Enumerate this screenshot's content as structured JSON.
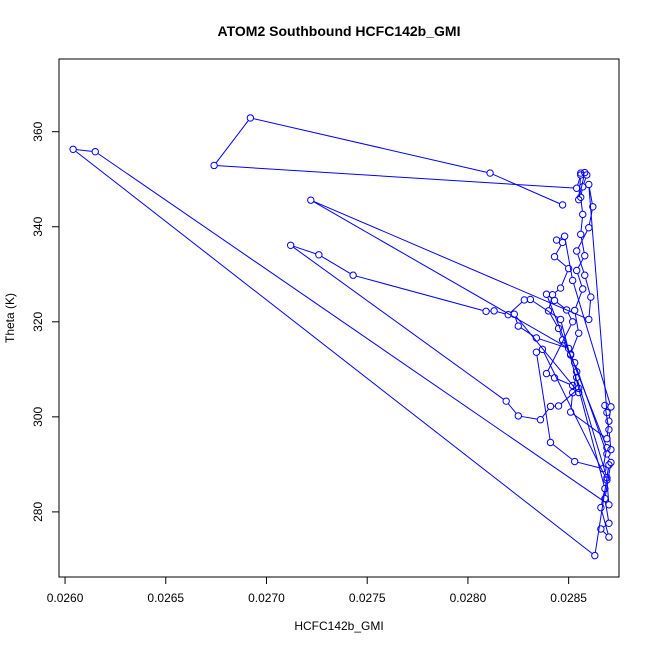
{
  "chart_data": {
    "type": "line",
    "title": "ATOM2 Southbound HCFC142b_GMI",
    "xlabel": "HCFC142b_GMI",
    "ylabel": "Theta (K)",
    "xlim": [
      0.02597,
      0.02875
    ],
    "ylim": [
      266.3,
      375.3
    ],
    "x_ticks": [
      0.026,
      0.0265,
      0.027,
      0.0275,
      0.028,
      0.0285
    ],
    "x_tick_labels": [
      "0.0260",
      "0.0265",
      "0.0270",
      "0.0275",
      "0.0280",
      "0.0285"
    ],
    "y_ticks": [
      280,
      300,
      320,
      340,
      360
    ],
    "y_tick_labels": [
      "280",
      "300",
      "320",
      "340",
      "360"
    ],
    "grid": false,
    "legend": "none",
    "series_color": "#0000ff",
    "series": [
      {
        "marker": "open-circle",
        "points": [
          [
            0.02847,
            344.6
          ],
          [
            0.02811,
            351.3
          ],
          [
            0.02692,
            362.9
          ],
          [
            0.02674,
            352.9
          ],
          [
            0.02854,
            348.1
          ],
          [
            0.02856,
            350.9
          ],
          [
            0.02855,
            345.7
          ],
          [
            0.02858,
            351.4
          ],
          [
            0.02856,
            351.3
          ],
          [
            0.02859,
            350.9
          ],
          [
            0.02857,
            348.4
          ],
          [
            0.02856,
            346.2
          ],
          [
            0.02857,
            342.6
          ],
          [
            0.02856,
            338.4
          ],
          [
            0.02858,
            333.9
          ],
          [
            0.02854,
            330.8
          ],
          [
            0.02857,
            326.9
          ],
          [
            0.02853,
            322.4
          ],
          [
            0.02855,
            317.6
          ],
          [
            0.02851,
            313.2
          ],
          [
            0.02854,
            309.5
          ],
          [
            0.02852,
            305.1
          ],
          [
            0.02851,
            301.0
          ],
          [
            0.02869,
            295.4
          ],
          [
            0.0287,
            299.1
          ],
          [
            0.02871,
            302.1
          ],
          [
            0.02852,
            328.7
          ],
          [
            0.02848,
            338.0
          ],
          [
            0.02844,
            337.2
          ],
          [
            0.02847,
            336.7
          ],
          [
            0.02843,
            333.7
          ],
          [
            0.0285,
            331.2
          ],
          [
            0.02846,
            327.1
          ],
          [
            0.02842,
            325.7
          ],
          [
            0.0284,
            322.3
          ],
          [
            0.02845,
            318.6
          ],
          [
            0.02847,
            316.2
          ],
          [
            0.02851,
            313.0
          ],
          [
            0.02853,
            311.4
          ],
          [
            0.02869,
            292.2
          ],
          [
            0.02871,
            290.4
          ],
          [
            0.02868,
            282.8
          ],
          [
            0.0287,
            277.6
          ],
          [
            0.02866,
            276.4
          ],
          [
            0.0287,
            274.7
          ],
          [
            0.02866,
            280.9
          ],
          [
            0.02868,
            284.9
          ],
          [
            0.02846,
            320.5
          ],
          [
            0.02831,
            324.7
          ],
          [
            0.02828,
            324.6
          ],
          [
            0.0282,
            321.5
          ],
          [
            0.02813,
            322.3
          ],
          [
            0.02809,
            322.2
          ],
          [
            0.02743,
            329.8
          ],
          [
            0.02726,
            334.1
          ],
          [
            0.02712,
            336.1
          ],
          [
            0.02819,
            303.3
          ],
          [
            0.02825,
            300.2
          ],
          [
            0.02836,
            299.4
          ],
          [
            0.02841,
            302.2
          ],
          [
            0.02845,
            302.3
          ],
          [
            0.02855,
            306.0
          ],
          [
            0.02854,
            308.3
          ],
          [
            0.02869,
            287.2
          ],
          [
            0.0287,
            289.9
          ],
          [
            0.02863,
            270.8
          ],
          [
            0.02604,
            356.3
          ],
          [
            0.02615,
            355.8
          ],
          [
            0.0287,
            281.5
          ],
          [
            0.02869,
            286.7
          ],
          [
            0.02837,
            314.2
          ],
          [
            0.02834,
            313.6
          ],
          [
            0.02841,
            294.6
          ],
          [
            0.02853,
            290.6
          ],
          [
            0.02867,
            289.1
          ],
          [
            0.02869,
            293.5
          ],
          [
            0.02839,
            325.8
          ],
          [
            0.02843,
            324.5
          ],
          [
            0.02849,
            322.5
          ],
          [
            0.02852,
            320.0
          ],
          [
            0.02839,
            309.1
          ],
          [
            0.02843,
            308.2
          ],
          [
            0.02852,
            306.6
          ],
          [
            0.02855,
            305.1
          ],
          [
            0.02823,
            321.6
          ],
          [
            0.02825,
            319.1
          ],
          [
            0.02834,
            316.6
          ],
          [
            0.0285,
            314.4
          ],
          [
            0.02722,
            345.6
          ],
          [
            0.0286,
            320.5
          ],
          [
            0.02861,
            325.2
          ],
          [
            0.02858,
            329.8
          ],
          [
            0.02854,
            334.9
          ],
          [
            0.0286,
            339.8
          ],
          [
            0.02862,
            344.2
          ],
          [
            0.0286,
            348.9
          ],
          [
            0.02869,
            300.9
          ],
          [
            0.02868,
            302.4
          ],
          [
            0.0287,
            297.3
          ],
          [
            0.02871,
            293.1
          ]
        ]
      }
    ]
  }
}
